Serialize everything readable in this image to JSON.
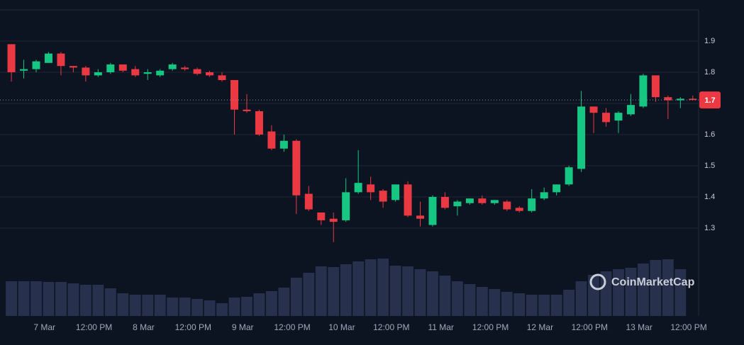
{
  "chart_data": {
    "type": "candlestick",
    "watermark": "CoinMarketCap",
    "colors": {
      "up": "#16c784",
      "down": "#ea3943",
      "volume": "#27304d"
    },
    "open": [
      1.89,
      1.805,
      1.81,
      1.83,
      1.86,
      1.82,
      1.815,
      1.79,
      1.8,
      1.825,
      1.81,
      1.795,
      1.79,
      1.81,
      1.815,
      1.81,
      1.8,
      1.79,
      1.775,
      1.68,
      1.675,
      1.61,
      1.555,
      1.58,
      1.41,
      1.35,
      1.33,
      1.325,
      1.415,
      1.44,
      1.42,
      1.39,
      1.44,
      1.34,
      1.31,
      1.4,
      1.37,
      1.38,
      1.395,
      1.38,
      1.385,
      1.365,
      1.355,
      1.395,
      1.415,
      1.44,
      1.49,
      1.69,
      1.67,
      1.645,
      1.665,
      1.69,
      1.79,
      1.72,
      1.71,
      1.715
    ],
    "high": [
      1.89,
      1.84,
      1.84,
      1.865,
      1.865,
      1.82,
      1.82,
      1.81,
      1.83,
      1.825,
      1.82,
      1.81,
      1.81,
      1.83,
      1.82,
      1.815,
      1.805,
      1.8,
      1.775,
      1.73,
      1.68,
      1.63,
      1.6,
      1.585,
      1.435,
      1.35,
      1.35,
      1.46,
      1.55,
      1.465,
      1.425,
      1.44,
      1.45,
      1.385,
      1.405,
      1.415,
      1.39,
      1.395,
      1.405,
      1.39,
      1.39,
      1.37,
      1.425,
      1.43,
      1.44,
      1.5,
      1.74,
      1.69,
      1.685,
      1.675,
      1.73,
      1.795,
      1.79,
      1.725,
      1.72,
      1.725
    ],
    "low": [
      1.77,
      1.78,
      1.8,
      1.83,
      1.79,
      1.8,
      1.77,
      1.785,
      1.795,
      1.8,
      1.785,
      1.775,
      1.785,
      1.805,
      1.805,
      1.79,
      1.785,
      1.77,
      1.6,
      1.67,
      1.595,
      1.55,
      1.545,
      1.345,
      1.355,
      1.31,
      1.255,
      1.32,
      1.41,
      1.39,
      1.365,
      1.385,
      1.335,
      1.305,
      1.305,
      1.36,
      1.34,
      1.375,
      1.375,
      1.375,
      1.355,
      1.35,
      1.35,
      1.39,
      1.405,
      1.435,
      1.48,
      1.605,
      1.625,
      1.605,
      1.66,
      1.685,
      1.705,
      1.65,
      1.685,
      1.71
    ],
    "close": [
      1.8,
      1.81,
      1.835,
      1.86,
      1.82,
      1.815,
      1.79,
      1.8,
      1.825,
      1.805,
      1.79,
      1.8,
      1.805,
      1.825,
      1.81,
      1.795,
      1.79,
      1.775,
      1.68,
      1.675,
      1.6,
      1.555,
      1.58,
      1.405,
      1.36,
      1.325,
      1.32,
      1.415,
      1.445,
      1.415,
      1.385,
      1.44,
      1.34,
      1.33,
      1.4,
      1.365,
      1.385,
      1.395,
      1.38,
      1.39,
      1.36,
      1.355,
      1.395,
      1.415,
      1.44,
      1.495,
      1.69,
      1.67,
      1.64,
      1.67,
      1.695,
      1.79,
      1.72,
      1.71,
      1.715,
      1.711
    ],
    "volume": [
      49,
      49,
      49,
      48,
      48,
      46,
      44,
      44,
      39,
      32,
      30,
      30,
      30,
      26,
      26,
      24,
      22,
      18,
      26,
      27,
      32,
      35,
      40,
      54,
      61,
      70,
      69,
      73,
      77,
      80,
      81,
      71,
      70,
      66,
      63,
      57,
      49,
      45,
      41,
      38,
      34,
      32,
      30,
      30,
      30,
      37,
      49,
      58,
      63,
      66,
      68,
      74,
      79,
      80,
      66,
      null
    ],
    "xlim": [
      -0.92,
      55.47
    ],
    "xticks": [
      {
        "value": 2.67,
        "label": "7 Mar"
      },
      {
        "value": 6.67,
        "label": "12:00 PM"
      },
      {
        "value": 10.67,
        "label": "8 Mar"
      },
      {
        "value": 14.67,
        "label": "12:00 PM"
      },
      {
        "value": 18.67,
        "label": "9 Mar"
      },
      {
        "value": 22.67,
        "label": "12:00 PM"
      },
      {
        "value": 26.67,
        "label": "10 Mar"
      },
      {
        "value": 30.67,
        "label": "12:00 PM"
      },
      {
        "value": 34.67,
        "label": "11 Mar"
      },
      {
        "value": 38.67,
        "label": "12:00 PM"
      },
      {
        "value": 42.67,
        "label": "12 Mar"
      },
      {
        "value": 46.67,
        "label": "12:00 PM"
      },
      {
        "value": 50.67,
        "label": "13 Mar"
      },
      {
        "value": 54.67,
        "label": "12:00 PM"
      }
    ],
    "ylim": [
      1.018,
      2.0
    ],
    "yticks": [
      1.3,
      1.4,
      1.5,
      1.6,
      1.7,
      1.8,
      1.9
    ],
    "grid": true,
    "last_price": {
      "value": 1.711,
      "label": "1.7"
    }
  }
}
